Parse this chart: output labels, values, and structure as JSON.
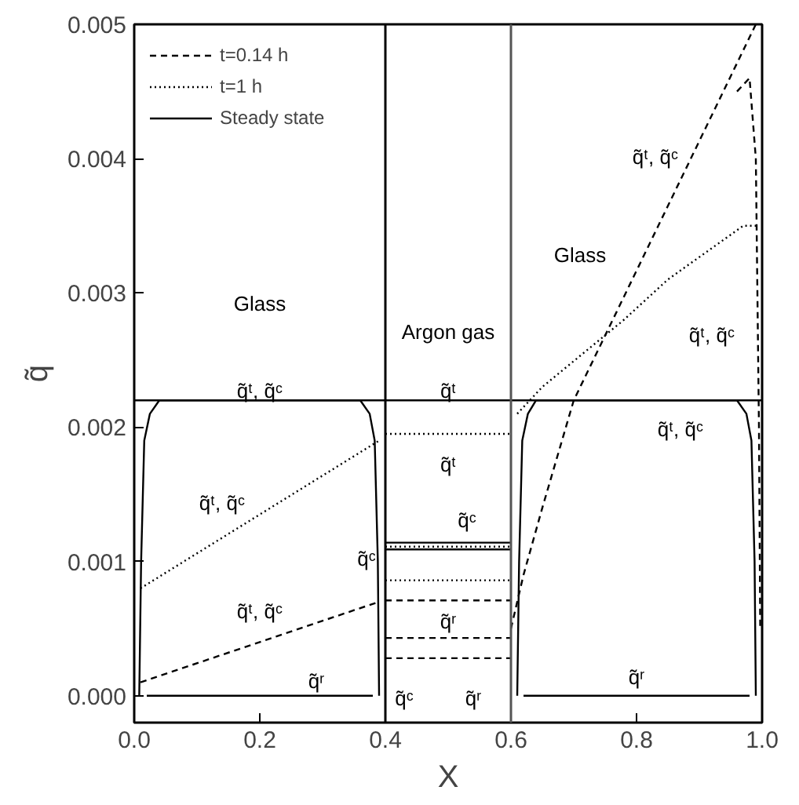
{
  "chart_data": {
    "type": "line",
    "xlabel": "X",
    "ylabel": "q̃",
    "xlim": [
      0,
      1
    ],
    "ylim": [
      -0.0002,
      0.005
    ],
    "xticks": [
      {
        "value": 0,
        "label": "0.0"
      },
      {
        "value": 0.2,
        "label": "0.2"
      },
      {
        "value": 0.4,
        "label": "0.4"
      },
      {
        "value": 0.6,
        "label": "0.6"
      },
      {
        "value": 0.8,
        "label": "0.8"
      },
      {
        "value": 1,
        "label": "1.0"
      }
    ],
    "yticks": [
      {
        "value": 0,
        "label": "0.000"
      },
      {
        "value": 0.001,
        "label": "0.001"
      },
      {
        "value": 0.002,
        "label": "0.002"
      },
      {
        "value": 0.003,
        "label": "0.003"
      },
      {
        "value": 0.004,
        "label": "0.004"
      },
      {
        "value": 0.005,
        "label": "0.005"
      }
    ],
    "grid": false,
    "legend": "top left",
    "marker": "none",
    "series": [
      {
        "name": "t=0.14 h",
        "color": "#000000",
        "line_style": "dashed",
        "x": [
          0.01,
          0.39
        ],
        "values": [
          0.0001,
          0.0007
        ]
      },
      {
        "color": "#000000",
        "line_style": "dashed",
        "x": [
          0.4,
          0.6
        ],
        "values": [
          0.00071,
          0.00071
        ]
      },
      {
        "color": "#000000",
        "line_style": "dashed",
        "x": [
          0.4,
          0.6
        ],
        "values": [
          0.00043,
          0.00043
        ]
      },
      {
        "color": "#000000",
        "line_style": "dashed",
        "x": [
          0.4,
          0.6
        ],
        "values": [
          0.00028,
          0.00028
        ]
      },
      {
        "color": "#000000",
        "line_style": "dashed",
        "x": [
          0.6,
          0.62,
          0.65,
          0.7,
          0.99
        ],
        "values": [
          0.0005,
          0.0009,
          0.0014,
          0.0022,
          0.005
        ]
      },
      {
        "color": "#000000",
        "line_style": "dashed",
        "x": [
          0.96,
          0.98,
          0.99,
          0.995,
          0.997
        ],
        "values": [
          0.0045,
          0.0046,
          0.004,
          0.002,
          0.0005
        ]
      },
      {
        "name": "t=1 h",
        "color": "#000000",
        "line_style": "dotted",
        "x": [
          0.01,
          0.39
        ],
        "values": [
          0.0008,
          0.0019
        ]
      },
      {
        "color": "#000000",
        "line_style": "dotted",
        "x": [
          0.4,
          0.6
        ],
        "values": [
          0.00195,
          0.00195
        ]
      },
      {
        "color": "#000000",
        "line_style": "dotted",
        "x": [
          0.4,
          0.6
        ],
        "values": [
          0.00111,
          0.00111
        ]
      },
      {
        "color": "#000000",
        "line_style": "dotted",
        "x": [
          0.4,
          0.6
        ],
        "values": [
          0.00086,
          0.00086
        ]
      },
      {
        "color": "#000000",
        "line_style": "dotted",
        "x": [
          0.61,
          0.65,
          0.78,
          0.85,
          0.97,
          0.99
        ],
        "values": [
          0.0021,
          0.0023,
          0.0028,
          0.0031,
          0.0035,
          0.0035
        ]
      },
      {
        "name": "Steady state",
        "color": "#000000",
        "line_style": "solid",
        "x": [
          0,
          1
        ],
        "values": [
          0.0022,
          0.0022
        ]
      },
      {
        "color": "#000000",
        "line_style": "solid",
        "x": [
          0.008,
          0.011,
          0.016,
          0.025,
          0.04,
          0.36,
          0.375,
          0.383,
          0.388,
          0.39
        ],
        "values": [
          0.0,
          0.001,
          0.0019,
          0.0021,
          0.0022,
          0.0022,
          0.0021,
          0.0019,
          0.001,
          0.0
        ]
      },
      {
        "color": "#000000",
        "line_style": "solid",
        "x": [
          0.02,
          0.38
        ],
        "values": [
          0.0,
          0.0
        ]
      },
      {
        "color": "#000000",
        "line_style": "solid",
        "x": [
          0.4,
          0.6
        ],
        "values": [
          0.00114,
          0.00114
        ]
      },
      {
        "color": "#000000",
        "line_style": "solid",
        "x": [
          0.4,
          0.6
        ],
        "values": [
          0.00109,
          0.00109
        ]
      },
      {
        "color": "#000000",
        "line_style": "solid",
        "x": [
          0.61,
          0.613,
          0.618,
          0.627,
          0.64,
          0.96,
          0.975,
          0.983,
          0.988,
          0.99
        ],
        "values": [
          0.0,
          0.001,
          0.0019,
          0.0021,
          0.0022,
          0.0022,
          0.0021,
          0.0019,
          0.001,
          0.0
        ]
      },
      {
        "color": "#000000",
        "line_style": "solid",
        "x": [
          0.62,
          0.98
        ],
        "values": [
          0.0,
          0.0
        ]
      }
    ],
    "ref_lines": [
      {
        "axis": "x",
        "value": 0.4,
        "color": "#000000"
      },
      {
        "axis": "x",
        "value": 0.6,
        "color": "#555555"
      }
    ],
    "annotations": [
      "Glass",
      "Argon gas",
      "Glass",
      "q̃ᵗ, q̃ᶜ",
      "q̃ᵗ",
      "q̃ᵗ, q̃ᶜ",
      "q̃ᵗ, q̃ᶜ",
      "q̃ᵗ, q̃ᶜ",
      "q̃ᵗ",
      "q̃ᶜ",
      "q̃ᶜ",
      "q̃ʳ",
      "q̃ᶜ",
      "q̃ʳ",
      "q̃ᵗ, q̃ᶜ",
      "q̃ᵗ, q̃ᶜ",
      "q̃ʳ",
      "q̃ʳ"
    ]
  }
}
